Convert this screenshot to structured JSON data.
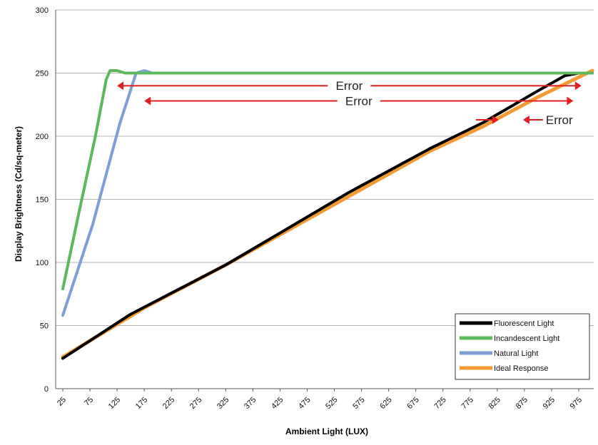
{
  "chart_data": {
    "type": "line",
    "title": "",
    "xlabel": "Ambient Light (LUX)",
    "ylabel": "Display Brightness (Cd/sq-meter)",
    "xlim": [
      25,
      1000
    ],
    "ylim": [
      0,
      300
    ],
    "x_ticks": [
      "25",
      "75",
      "125",
      "175",
      "225",
      "275",
      "325",
      "375",
      "425",
      "475",
      "525",
      "575",
      "625",
      "675",
      "725",
      "775",
      "825",
      "875",
      "925",
      "975"
    ],
    "y_ticks": [
      "0",
      "50",
      "100",
      "150",
      "200",
      "250",
      "300"
    ],
    "grid": "horizontal",
    "legend_position": "bottom-right",
    "series": [
      {
        "name": "Fluorescent Light",
        "color": "#000000",
        "points": [
          [
            25,
            24
          ],
          [
            150,
            59
          ],
          [
            325,
            98
          ],
          [
            400,
            117
          ],
          [
            550,
            155
          ],
          [
            700,
            190
          ],
          [
            800,
            211
          ],
          [
            900,
            236
          ],
          [
            950,
            248
          ],
          [
            975,
            250
          ],
          [
            1000,
            250
          ]
        ]
      },
      {
        "name": "Incandescent Light",
        "color": "#5cb85c",
        "points": [
          [
            25,
            79
          ],
          [
            55,
            140
          ],
          [
            85,
            200
          ],
          [
            105,
            245
          ],
          [
            112,
            252
          ],
          [
            125,
            252
          ],
          [
            140,
            250
          ],
          [
            175,
            250
          ],
          [
            1000,
            250
          ]
        ]
      },
      {
        "name": "Natural Light",
        "color": "#7e9fd6",
        "points": [
          [
            25,
            58
          ],
          [
            80,
            130
          ],
          [
            130,
            210
          ],
          [
            160,
            250
          ],
          [
            175,
            252
          ],
          [
            190,
            250
          ],
          [
            1000,
            250
          ]
        ]
      },
      {
        "name": "Ideal Response",
        "color": "#f39a30",
        "points": [
          [
            25,
            25
          ],
          [
            175,
            64
          ],
          [
            325,
            98
          ],
          [
            500,
            140
          ],
          [
            700,
            188
          ],
          [
            800,
            208
          ],
          [
            900,
            231
          ],
          [
            1000,
            252
          ]
        ]
      }
    ],
    "annotations": [
      {
        "text": "Error",
        "y": 240,
        "x_from": 125,
        "x_to": 980
      },
      {
        "text": "Error",
        "y": 228,
        "x_from": 175,
        "x_to": 965
      },
      {
        "text": "Error",
        "y": 213,
        "x_from": 825,
        "x_to": 875
      }
    ]
  }
}
